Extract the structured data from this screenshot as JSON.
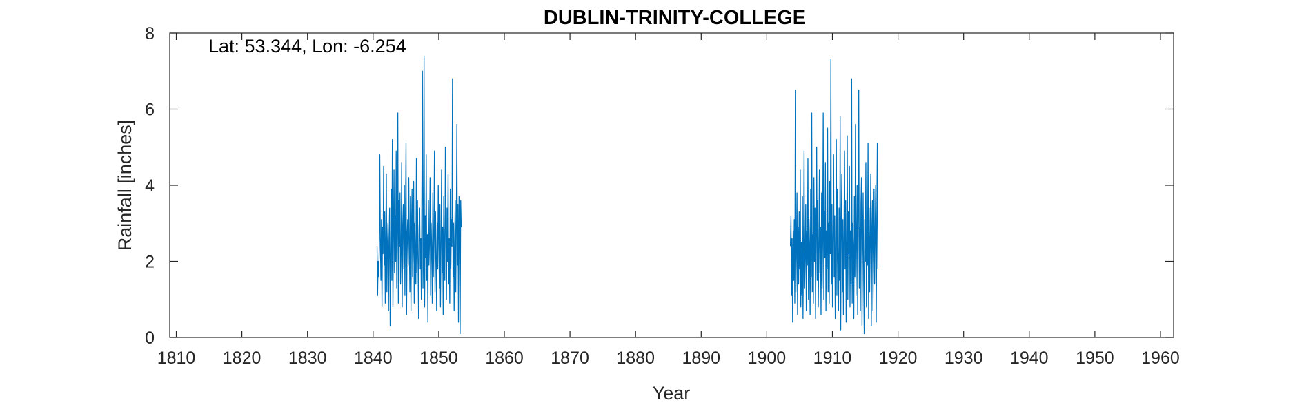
{
  "chart_data": {
    "type": "line",
    "title": "DUBLIN-TRINITY-COLLEGE",
    "xlabel": "Year",
    "ylabel": "Rainfall [inches]",
    "annotation": "Lat: 53.344, Lon: -6.254",
    "xlim": [
      1809,
      1962
    ],
    "ylim": [
      0,
      8
    ],
    "xticks": [
      1810,
      1820,
      1830,
      1840,
      1850,
      1860,
      1870,
      1880,
      1890,
      1900,
      1910,
      1920,
      1930,
      1940,
      1950,
      1960
    ],
    "yticks": [
      0,
      2,
      4,
      6,
      8
    ],
    "grid": false,
    "series": [
      {
        "color": "#0072BD",
        "segments": [
          {
            "start_year": 1840.6,
            "step_years": 0.0833,
            "values": [
              2.4,
              1.1,
              2.0,
              1.6,
              2.3,
              4.8,
              2.6,
              1.5,
              3.1,
              0.8,
              2.9,
              2.2,
              4.5,
              1.9,
              3.3,
              0.9,
              2.7,
              4.3,
              1.2,
              2.4,
              3.0,
              0.7,
              2.6,
              3.4,
              0.3,
              2.1,
              3.9,
              1.5,
              5.2,
              0.8,
              2.6,
              4.4,
              1.7,
              3.2,
              2.0,
              4.9,
              1.3,
              2.8,
              5.9,
              0.9,
              3.6,
              2.4,
              3.8,
              1.4,
              2.2,
              4.6,
              0.8,
              2.9,
              3.5,
              1.8,
              4.0,
              1.1,
              3.3,
              5.1,
              0.6,
              2.7,
              3.1,
              1.9,
              4.2,
              2.5,
              1.2,
              3.7,
              0.7,
              2.8,
              3.9,
              1.6,
              2.3,
              4.1,
              0.9,
              3.0,
              2.2,
              1.4,
              4.7,
              1.7,
              3.6,
              2.0,
              0.5,
              2.9,
              3.4,
              1.8,
              2.6,
              1.0,
              3.9,
              7.0,
              1.3,
              2.4,
              7.4,
              0.8,
              3.2,
              2.1,
              4.8,
              1.5,
              2.7,
              0.4,
              3.6,
              1.9,
              2.5,
              4.2,
              1.1,
              3.0,
              2.3,
              0.9,
              3.8,
              1.6,
              2.7,
              4.9,
              1.2,
              3.3,
              2.1,
              0.7,
              3.0,
              1.8,
              4.0,
              2.6,
              1.3,
              3.5,
              0.8,
              2.4,
              4.4,
              1.7,
              2.9,
              0.6,
              3.7,
              2.2,
              1.5,
              5.0,
              2.8,
              1.0,
              3.4,
              2.0,
              4.3,
              1.4,
              2.6,
              0.9,
              3.9,
              1.8,
              3.1,
              2.4,
              6.8,
              1.6,
              3.0,
              0.7,
              2.5,
              3.6,
              1.2,
              2.9,
              5.6,
              1.9,
              3.5,
              0.4,
              3.7,
              2.8,
              0.1,
              3.6,
              2.9
            ]
          },
          {
            "start_year": 1903.6,
            "step_years": 0.0833,
            "values": [
              2.4,
              3.2,
              1.1,
              2.6,
              0.4,
              2.8,
              1.5,
              3.1,
              0.9,
              6.5,
              1.2,
              2.3,
              3.8,
              0.6,
              2.9,
              1.4,
              3.3,
              1.8,
              4.4,
              0.8,
              2.5,
              1.1,
              3.7,
              0.5,
              2.6,
              4.9,
              1.3,
              2.2,
              3.5,
              0.7,
              2.8,
              1.9,
              4.7,
              1.0,
              3.1,
              2.4,
              0.6,
              3.9,
              1.6,
              5.9,
              1.2,
              2.7,
              0.9,
              4.2,
              2.0,
              3.4,
              0.5,
              2.6,
              5.0,
              1.5,
              3.6,
              0.8,
              2.3,
              4.4,
              1.7,
              2.9,
              0.6,
              3.8,
              1.3,
              2.5,
              5.9,
              1.0,
              3.3,
              2.1,
              4.6,
              0.7,
              2.8,
              1.8,
              5.5,
              1.2,
              3.0,
              0.9,
              4.1,
              2.2,
              7.3,
              1.4,
              3.5,
              0.8,
              2.6,
              4.8,
              1.6,
              3.2,
              0.5,
              2.4,
              5.2,
              1.1,
              3.9,
              2.0,
              0.7,
              3.4,
              1.5,
              5.8,
              0.2,
              2.9,
              4.3,
              1.2,
              3.1,
              0.6,
              2.7,
              4.9,
              1.8,
              3.6,
              0.4,
              2.5,
              5.3,
              1.0,
              3.3,
              2.2,
              4.5,
              0.8,
              2.8,
              1.4,
              6.8,
              0.9,
              3.0,
              2.4,
              0.5,
              3.7,
              1.6,
              5.6,
              1.1,
              2.6,
              4.0,
              0.6,
              3.2,
              6.5,
              1.3,
              2.9,
              0.7,
              3.5,
              4.2,
              0.3,
              2.3,
              3.8,
              1.5,
              0.1,
              3.1,
              2.0,
              4.6,
              0.8,
              2.7,
              1.9,
              5.1,
              0.5,
              3.4,
              1.2,
              2.6,
              4.3,
              0.3,
              2.9,
              3.6,
              0.7,
              2.2,
              3.9,
              1.4,
              2.8,
              4.0,
              0.4,
              3.1,
              5.1,
              1.8
            ]
          }
        ]
      }
    ]
  }
}
